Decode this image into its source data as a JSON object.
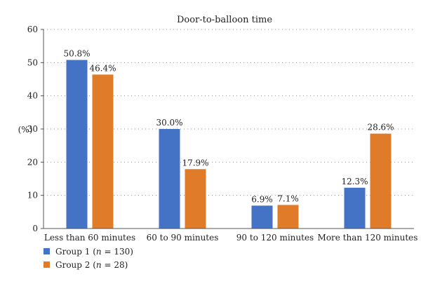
{
  "chart_data": {
    "type": "bar",
    "title": "Door-to-balloon time",
    "ylabel": "(%)",
    "xlabel": "",
    "ylim": [
      0,
      60
    ],
    "yticks": [
      0,
      10,
      20,
      30,
      40,
      50,
      60
    ],
    "grid": true,
    "legend_position": "bottom-left",
    "categories": [
      "Less than 60 minutes",
      "60 to 90 minutes",
      "90 to 120 minutes",
      "More than 120 minutes"
    ],
    "series": [
      {
        "name": "Group 1 (n = 130)",
        "name_parts": [
          "Group 1 (",
          "n",
          " = 130)"
        ],
        "color": "#4472c4",
        "values": [
          50.8,
          30.0,
          6.9,
          12.3
        ],
        "labels": [
          "50.8%",
          "30.0%",
          "6.9%",
          "12.3%"
        ]
      },
      {
        "name": "Group 2 (n = 28)",
        "name_parts": [
          "Group 2 (",
          "n",
          " = 28)"
        ],
        "color": "#e07b2a",
        "values": [
          46.4,
          17.9,
          7.1,
          28.6
        ],
        "labels": [
          "46.4%",
          "17.9%",
          "7.1%",
          "28.6%"
        ]
      }
    ]
  }
}
